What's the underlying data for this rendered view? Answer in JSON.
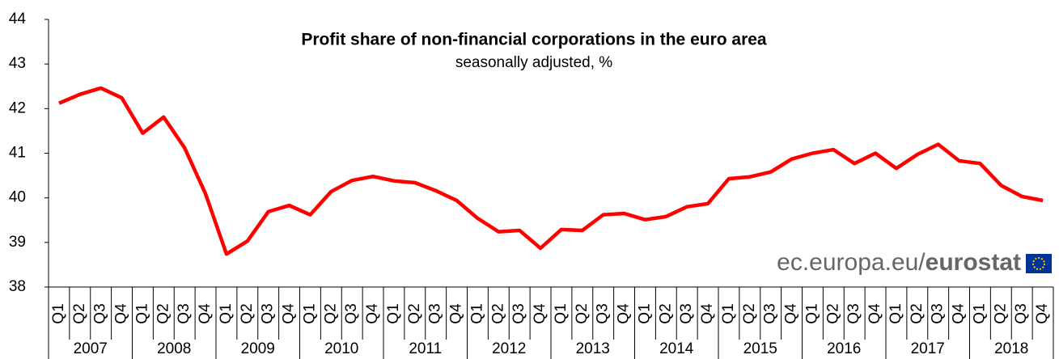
{
  "chart_data": {
    "type": "line",
    "title": "Profit share of non-financial corporations in the euro area",
    "subtitle": "seasonally adjusted, %",
    "categories": [
      "Q1",
      "Q2",
      "Q3",
      "Q4",
      "Q1",
      "Q2",
      "Q3",
      "Q4",
      "Q1",
      "Q2",
      "Q3",
      "Q4",
      "Q1",
      "Q2",
      "Q3",
      "Q4",
      "Q1",
      "Q2",
      "Q3",
      "Q4",
      "Q1",
      "Q2",
      "Q3",
      "Q4",
      "Q1",
      "Q2",
      "Q3",
      "Q4",
      "Q1",
      "Q2",
      "Q3",
      "Q4",
      "Q1",
      "Q2",
      "Q3",
      "Q4",
      "Q1",
      "Q2",
      "Q3",
      "Q4",
      "Q1",
      "Q2",
      "Q3",
      "Q4",
      "Q1",
      "Q2",
      "Q3",
      "Q4"
    ],
    "years": [
      "2007",
      "2008",
      "2009",
      "2010",
      "2011",
      "2012",
      "2013",
      "2014",
      "2015",
      "2016",
      "2017",
      "2018"
    ],
    "series": [
      {
        "name": "Profit share",
        "color": "#ff0000",
        "values": [
          42.12,
          42.32,
          42.46,
          42.24,
          41.45,
          41.81,
          41.12,
          40.09,
          38.74,
          39.03,
          39.69,
          39.83,
          39.62,
          40.14,
          40.39,
          40.48,
          40.38,
          40.34,
          40.16,
          39.94,
          39.54,
          39.24,
          39.27,
          38.87,
          39.29,
          39.27,
          39.62,
          39.65,
          39.51,
          39.58,
          39.8,
          39.87,
          40.43,
          40.47,
          40.58,
          40.87,
          41.0,
          41.08,
          40.77,
          41.0,
          40.66,
          40.97,
          41.2,
          40.83,
          40.77,
          40.28,
          40.03,
          39.94
        ]
      }
    ],
    "ylim": [
      38,
      44
    ],
    "yticks": [
      38,
      39,
      40,
      41,
      42,
      43,
      44
    ],
    "source_prefix": "ec.europa.eu/",
    "source_brand": "eurostat"
  }
}
